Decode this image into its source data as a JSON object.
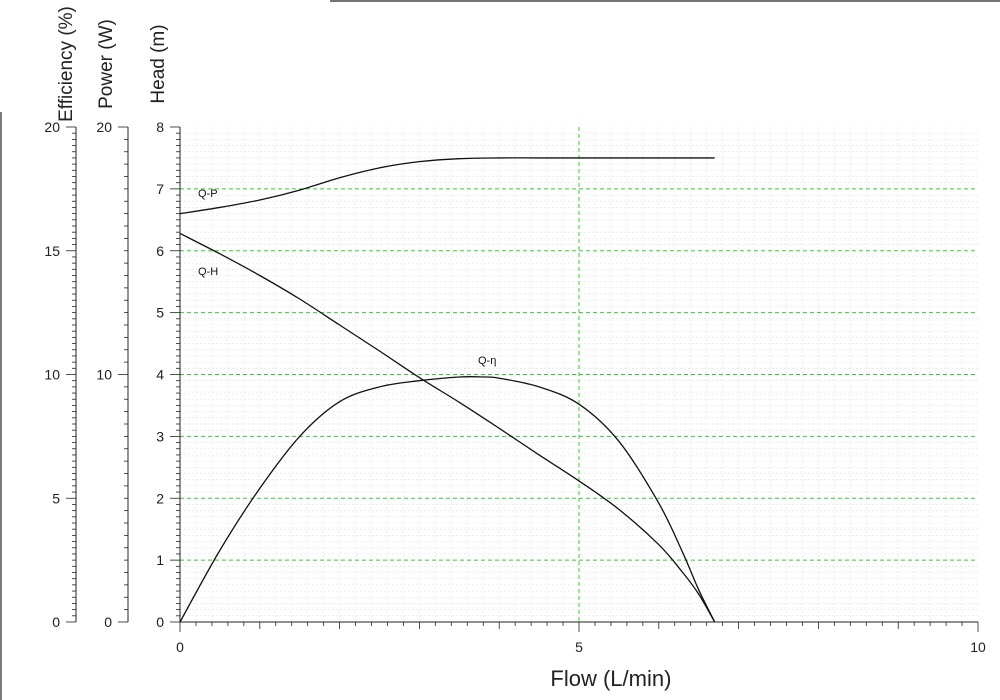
{
  "chart_data": {
    "type": "line",
    "x_axis": {
      "label": "Flow (L/min)",
      "range": [
        0,
        10
      ],
      "ticks": [
        0,
        5,
        10
      ]
    },
    "y_axes": [
      {
        "id": "head",
        "label": "Head (m)",
        "range": [
          0,
          8
        ],
        "ticks": [
          0,
          1,
          2,
          3,
          4,
          5,
          6,
          7,
          8
        ]
      },
      {
        "id": "power",
        "label": "Power (W)",
        "range": [
          0,
          20
        ],
        "ticks": [
          0,
          10,
          20
        ]
      },
      {
        "id": "efficiency",
        "label": "Efficiency (%)",
        "range": [
          0,
          20
        ],
        "ticks": [
          0,
          5,
          10,
          15,
          20
        ]
      }
    ],
    "grid": {
      "horizontal": true,
      "minor": true,
      "major_vertical_at": 5,
      "major_color": "#33cc33"
    },
    "series": [
      {
        "name": "Q-P",
        "axis": "power",
        "x": [
          0,
          0.5,
          1.0,
          1.5,
          2.0,
          2.5,
          3.0,
          3.5,
          4.0,
          4.5,
          5.0,
          5.5,
          6.0,
          6.5,
          6.7
        ],
        "y": [
          16.5,
          16.75,
          17.05,
          17.45,
          17.95,
          18.35,
          18.6,
          18.72,
          18.75,
          18.75,
          18.75,
          18.75,
          18.75,
          18.75,
          18.75
        ]
      },
      {
        "name": "Q-H",
        "axis": "head",
        "x": [
          0,
          0.5,
          1.0,
          1.5,
          2.0,
          2.5,
          3.0,
          3.5,
          4.0,
          4.5,
          5.0,
          5.5,
          6.0,
          6.3,
          6.5,
          6.7
        ],
        "y": [
          6.28,
          5.95,
          5.6,
          5.22,
          4.8,
          4.38,
          3.95,
          3.55,
          3.13,
          2.7,
          2.28,
          1.82,
          1.25,
          0.8,
          0.45,
          0.0
        ]
      },
      {
        "name": "Q-η",
        "axis": "efficiency",
        "x": [
          0,
          0.5,
          1.0,
          1.5,
          2.0,
          2.5,
          3.0,
          3.5,
          3.8,
          4.0,
          4.5,
          5.0,
          5.5,
          6.0,
          6.3,
          6.5,
          6.7
        ],
        "y": [
          0,
          2.9,
          5.4,
          7.5,
          8.9,
          9.5,
          9.75,
          9.9,
          9.9,
          9.85,
          9.5,
          8.8,
          7.3,
          4.8,
          2.8,
          1.3,
          0
        ]
      }
    ],
    "annotations": [
      {
        "text": "Q-P",
        "series": "Q-P"
      },
      {
        "text": "Q-H",
        "series": "Q-H"
      },
      {
        "text": "Q-η",
        "series": "Q-η"
      }
    ]
  }
}
